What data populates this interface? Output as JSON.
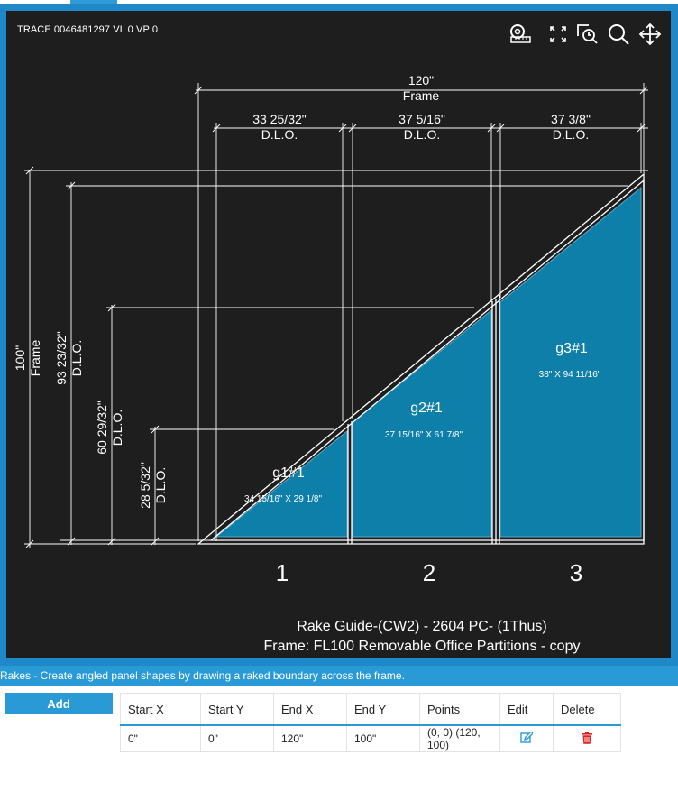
{
  "trace_label": "TRACE 0046481297  VL 0  VP 0",
  "toolbar": {
    "icons": [
      "tape-measure-icon",
      "fullscreen-icon",
      "zoom-window-icon",
      "search-icon",
      "pan-move-icon"
    ]
  },
  "drawing": {
    "frame_width": "120\"",
    "frame_label": "Frame",
    "dlo_widths": [
      "33 25/32\"",
      "37 5/16\"",
      "37 3/8\""
    ],
    "dlo_label": "D.L.O.",
    "frame_height": "100\"",
    "dlo_heights": [
      "93 23/32\"",
      "60 29/32\"",
      "28 5/32\""
    ],
    "panels": [
      {
        "name": "g1#1",
        "size": "34 15/16\" X 29 1/8\""
      },
      {
        "name": "g2#1",
        "size": "37 15/16\" X 61 7/8\""
      },
      {
        "name": "g3#1",
        "size": "38\" X 94 11/16\""
      }
    ],
    "bay_numbers": [
      "1",
      "2",
      "3"
    ],
    "caption_line1": "Rake Guide-(CW2) - 2604 PC-  (1Thus)",
    "caption_line2": "Frame: FL100 Removable Office Partitions - copy",
    "colors": {
      "glass": "#0e7fa8",
      "background": "#1e1e1e",
      "lines": "#ffffff"
    }
  },
  "status_text": "Rakes - Create angled panel shapes by drawing a raked boundary across the frame.",
  "add_button_label": "Add",
  "table": {
    "headers": [
      "Start X",
      "Start Y",
      "End X",
      "End Y",
      "Points",
      "Edit",
      "Delete"
    ],
    "rows": [
      {
        "start_x": "0\"",
        "start_y": "0\"",
        "end_x": "120\"",
        "end_y": "100\"",
        "points": "(0, 0) (120, 100)"
      }
    ]
  }
}
